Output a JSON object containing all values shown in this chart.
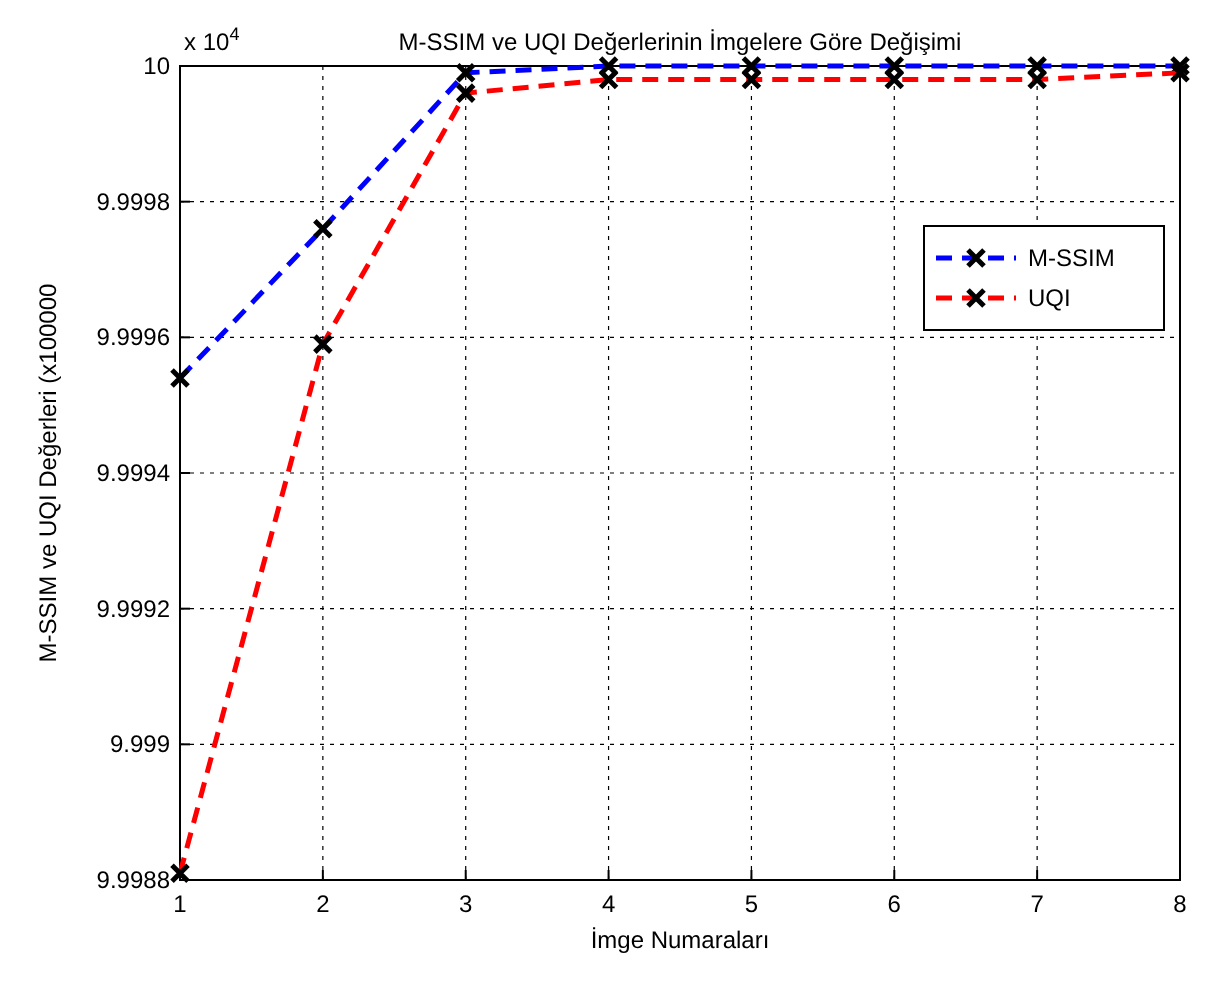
{
  "chart_data": {
    "type": "line",
    "title": "M-SSIM ve UQI Değerlerinin İmgelere Göre Değişimi",
    "xlabel": "İmge Numaraları",
    "ylabel": "M-SSIM ve UQI Değerleri (x100000",
    "annotations": [
      "x 10$^{4}$"
    ],
    "x": [
      1,
      2,
      3,
      4,
      5,
      6,
      7,
      8
    ],
    "series": [
      {
        "name": "M-SSIM",
        "color": "#0000ff",
        "values": [
          9.99954,
          9.99976,
          9.99999,
          10,
          10,
          10,
          10,
          10
        ]
      },
      {
        "name": "UQI",
        "color": "#ff0000",
        "values": [
          9.99881,
          9.99959,
          9.99996,
          9.99998,
          9.99998,
          9.99998,
          9.99998,
          9.99999
        ]
      }
    ],
    "xlim": [
      1,
      8
    ],
    "xticks": [
      1,
      2,
      3,
      4,
      5,
      6,
      7,
      8
    ],
    "ylim": [
      9.9988,
      10
    ],
    "yticks": [
      9.9988,
      9.999,
      9.9992,
      9.9994,
      9.9996,
      9.9998,
      10
    ],
    "grid": true,
    "legend": "right",
    "marker": "cross",
    "line_style": "dashed"
  }
}
